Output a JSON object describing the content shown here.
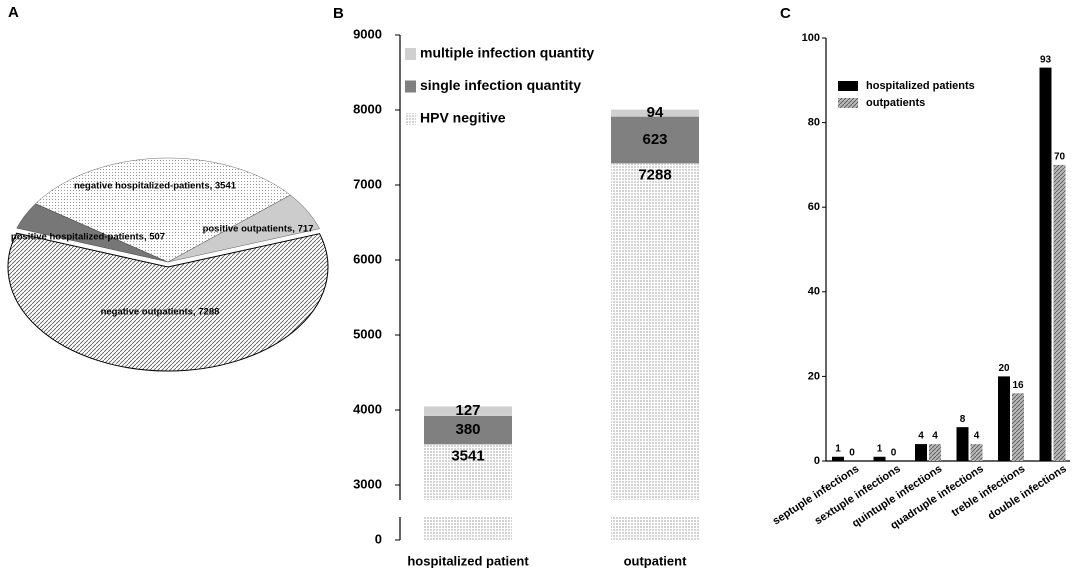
{
  "chart_data": [
    {
      "type": "pie",
      "title": "A",
      "values": [
        507,
        3541,
        717,
        7288
      ],
      "value_labels": [
        "positive hospitalized-patients, 507",
        "negative hospitalized-patients, 3541",
        "positive outpatients, 717",
        "negative outpatients, 7288"
      ],
      "colors": [
        "#777777",
        "#ffffff",
        "#cccccc",
        "#ffffff"
      ],
      "textures": [
        "none",
        "dots",
        "none",
        "hatch"
      ]
    },
    {
      "type": "stacked_bar",
      "title": "B",
      "categories": [
        "hospitalized  patient",
        "outpatient"
      ],
      "series": [
        {
          "name": "HPV negitive",
          "color": "#d4d4d4",
          "texture": "grid",
          "values": [
            3541,
            7288
          ]
        },
        {
          "name": "single infection quantity",
          "color": "#808080",
          "texture": "none",
          "values": [
            380,
            623
          ]
        },
        {
          "name": "multiple infection quantity",
          "color": "#d0d0d0",
          "texture": "none",
          "values": [
            127,
            94
          ]
        }
      ],
      "ylim": [
        0,
        9000
      ],
      "yticks": [
        0,
        3000,
        4000,
        5000,
        6000,
        7000,
        8000,
        9000
      ],
      "axis_break": [
        300,
        2800
      ],
      "legend": "upper left"
    },
    {
      "type": "bar",
      "title": "C",
      "categories": [
        "septuple infections",
        "sextuple infections",
        "quintuple infections",
        "quadruple infections",
        "treble infections",
        "double infections"
      ],
      "series": [
        {
          "name": "hospitalized  patients",
          "color": "#000000",
          "texture": "none",
          "values": [
            1,
            1,
            4,
            8,
            20,
            93
          ]
        },
        {
          "name": "outpatients",
          "color": "#b8b8b8",
          "texture": "hatch",
          "values": [
            0,
            0,
            4,
            4,
            16,
            70
          ]
        }
      ],
      "ylim": [
        0,
        100
      ],
      "yticks": [
        0,
        20,
        40,
        60,
        80,
        100
      ],
      "legend": "upper left"
    }
  ]
}
